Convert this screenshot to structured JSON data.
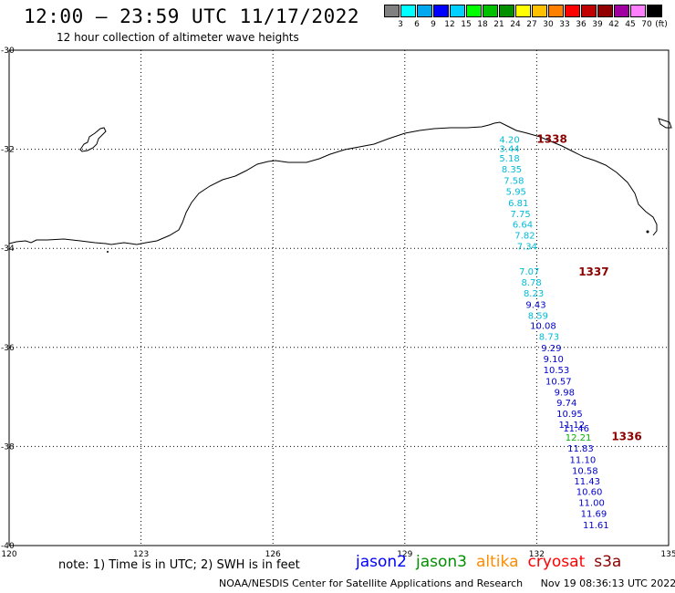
{
  "title": "12:00 — 23:59 UTC 11/17/2022",
  "subtitle": "12 hour collection of altimeter wave heights",
  "colorbar": {
    "colors": [
      "#808080",
      "#00ffff",
      "#00a8f0",
      "#0000ff",
      "#00d0ff",
      "#00ff00",
      "#00c000",
      "#009000",
      "#ffff00",
      "#ffc000",
      "#ff8000",
      "#ff0000",
      "#c00000",
      "#900000",
      "#a000a0",
      "#ff80ff",
      "#000000"
    ],
    "labels": [
      "3",
      "6",
      "9",
      "12",
      "15",
      "18",
      "21",
      "24",
      "27",
      "30",
      "33",
      "36",
      "39",
      "42",
      "45",
      "70"
    ],
    "unit": "(ft)"
  },
  "axes": {
    "lon_ticks": [
      120,
      123,
      126,
      129,
      132,
      135
    ],
    "lat_ticks": [
      -30,
      -32,
      -34,
      -36,
      -38,
      -40
    ],
    "lon_labels": [
      "120",
      "123",
      "126",
      "129",
      "132",
      "135"
    ],
    "lat_labels": [
      "-30",
      "-32",
      "-34",
      "-36",
      "-38",
      "-40"
    ]
  },
  "passes": [
    {
      "id": "1338",
      "color": "#8b0000",
      "lon": 132.0,
      "lat": -31.87
    },
    {
      "id": "1337",
      "color": "#8b0000",
      "lon": 132.95,
      "lat": -34.55
    },
    {
      "id": "1336",
      "color": "#8b0000",
      "lon": 133.7,
      "lat": -37.87
    }
  ],
  "swh": [
    {
      "v": "4.20",
      "lon": 131.15,
      "lat": -31.87,
      "c": "#00bcd8"
    },
    {
      "v": "3.44",
      "lon": 131.15,
      "lat": -32.05,
      "c": "#00bcd8"
    },
    {
      "v": "5.18",
      "lon": 131.15,
      "lat": -32.25,
      "c": "#00bcd8"
    },
    {
      "v": "8.35",
      "lon": 131.2,
      "lat": -32.47,
      "c": "#00bcd8"
    },
    {
      "v": "7.58",
      "lon": 131.25,
      "lat": -32.7,
      "c": "#00bcd8"
    },
    {
      "v": "5.95",
      "lon": 131.3,
      "lat": -32.92,
      "c": "#00bcd8"
    },
    {
      "v": "6.81",
      "lon": 131.35,
      "lat": -33.15,
      "c": "#00bcd8"
    },
    {
      "v": "7.75",
      "lon": 131.4,
      "lat": -33.37,
      "c": "#00bcd8"
    },
    {
      "v": "6.64",
      "lon": 131.45,
      "lat": -33.58,
      "c": "#00bcd8"
    },
    {
      "v": "7.82",
      "lon": 131.5,
      "lat": -33.8,
      "c": "#00bcd8"
    },
    {
      "v": "7.34",
      "lon": 131.55,
      "lat": -34.02,
      "c": "#00bcd8"
    },
    {
      "v": "7.07",
      "lon": 131.6,
      "lat": -34.53,
      "c": "#00bcd8"
    },
    {
      "v": "8.78",
      "lon": 131.65,
      "lat": -34.75,
      "c": "#00bcd8"
    },
    {
      "v": "8.23",
      "lon": 131.7,
      "lat": -34.97,
      "c": "#00bcd8"
    },
    {
      "v": "9.43",
      "lon": 131.75,
      "lat": -35.2,
      "c": "#0000cc"
    },
    {
      "v": "8.59",
      "lon": 131.8,
      "lat": -35.42,
      "c": "#00bcd8"
    },
    {
      "v": "10.08",
      "lon": 131.85,
      "lat": -35.63,
      "c": "#0000cc"
    },
    {
      "v": "8.73",
      "lon": 132.05,
      "lat": -35.85,
      "c": "#00bcd8"
    },
    {
      "v": "9.29",
      "lon": 132.1,
      "lat": -36.08,
      "c": "#0000cc"
    },
    {
      "v": "9.10",
      "lon": 132.15,
      "lat": -36.3,
      "c": "#0000cc"
    },
    {
      "v": "10.53",
      "lon": 132.15,
      "lat": -36.52,
      "c": "#0000cc"
    },
    {
      "v": "10.57",
      "lon": 132.2,
      "lat": -36.75,
      "c": "#0000cc"
    },
    {
      "v": "9.98",
      "lon": 132.4,
      "lat": -36.97,
      "c": "#0000cc"
    },
    {
      "v": "9.74",
      "lon": 132.45,
      "lat": -37.18,
      "c": "#0000cc"
    },
    {
      "v": "10.95",
      "lon": 132.45,
      "lat": -37.4,
      "c": "#0000cc"
    },
    {
      "v": "11.12",
      "lon": 132.5,
      "lat": -37.62,
      "c": "#0000cc"
    },
    {
      "v": "11.46",
      "lon": 132.6,
      "lat": -37.7,
      "c": "#0000cc"
    },
    {
      "v": "12.21",
      "lon": 132.65,
      "lat": -37.88,
      "c": "#00b000"
    },
    {
      "v": "11.83",
      "lon": 132.7,
      "lat": -38.1,
      "c": "#0000cc"
    },
    {
      "v": "11.10",
      "lon": 132.75,
      "lat": -38.33,
      "c": "#0000cc"
    },
    {
      "v": "10.58",
      "lon": 132.8,
      "lat": -38.55,
      "c": "#0000cc"
    },
    {
      "v": "11.43",
      "lon": 132.85,
      "lat": -38.77,
      "c": "#0000cc"
    },
    {
      "v": "10.60",
      "lon": 132.9,
      "lat": -38.98,
      "c": "#0000cc"
    },
    {
      "v": "11.00",
      "lon": 132.95,
      "lat": -39.2,
      "c": "#0000cc"
    },
    {
      "v": "11.69",
      "lon": 133.0,
      "lat": -39.42,
      "c": "#0000cc"
    },
    {
      "v": "11.61",
      "lon": 133.05,
      "lat": -39.65,
      "c": "#0000cc"
    }
  ],
  "note": "note: 1) Time is in UTC; 2) SWH is in feet",
  "satellites": [
    {
      "name": "jason2",
      "color": "#0000ff"
    },
    {
      "name": "jason3",
      "color": "#009000"
    },
    {
      "name": "altika",
      "color": "#ff8c00"
    },
    {
      "name": "cryosat",
      "color": "#ff0000"
    },
    {
      "name": "s3a",
      "color": "#8b0000"
    }
  ],
  "footer": {
    "credit": "NOAA/NESDIS Center for Satellite Applications and Research",
    "timestamp": "Nov 19 08:36:13 UTC 2022"
  }
}
